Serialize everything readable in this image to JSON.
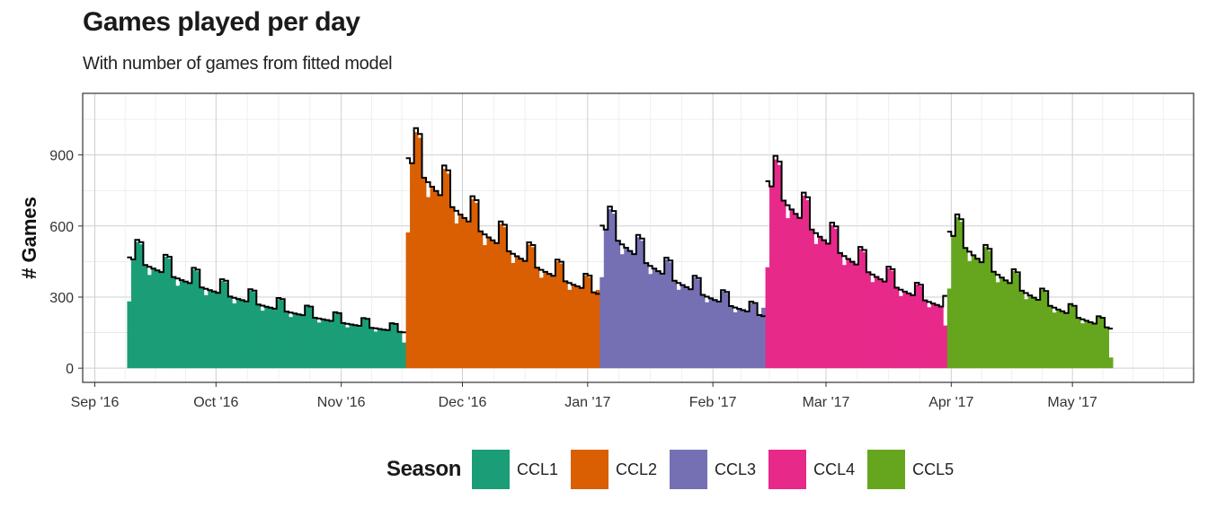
{
  "chart_data": {
    "type": "bar",
    "title": "Games played per day",
    "subtitle": "With number of games from fitted model",
    "xlabel": "",
    "ylabel": "# Games",
    "ylim": [
      -60,
      1160
    ],
    "yticks": [
      0,
      300,
      600,
      900
    ],
    "xlim": [
      "2016-08-29",
      "2017-05-31"
    ],
    "xticks": [
      {
        "date": "2016-09-01",
        "label": "Sep '16"
      },
      {
        "date": "2016-10-01",
        "label": "Oct '16"
      },
      {
        "date": "2016-11-01",
        "label": "Nov '16"
      },
      {
        "date": "2016-12-01",
        "label": "Dec '16"
      },
      {
        "date": "2017-01-01",
        "label": "Jan '17"
      },
      {
        "date": "2017-02-01",
        "label": "Feb '17"
      },
      {
        "date": "2017-03-01",
        "label": "Mar '17"
      },
      {
        "date": "2017-04-01",
        "label": "Apr '17"
      },
      {
        "date": "2017-05-01",
        "label": "May '17"
      }
    ],
    "grid": true,
    "legend": {
      "title": "Season",
      "position": "bottom"
    },
    "colors": {
      "CCL1": "#1b9e77",
      "CCL2": "#d95f02",
      "CCL3": "#7570b3",
      "CCL4": "#e7298a",
      "CCL5": "#66a61e",
      "fit": "#000000"
    },
    "series": [
      {
        "name": "CCL1",
        "start": "2016-09-09",
        "end": "2016-11-17",
        "peak": 580,
        "tail": 108,
        "fit_start": 470
      },
      {
        "name": "CCL2",
        "start": "2016-11-17",
        "end": "2017-01-04",
        "peak": 1050,
        "tail": 330,
        "fit_start": 955
      },
      {
        "name": "CCL3",
        "start": "2017-01-04",
        "end": "2017-02-14",
        "peak": 700,
        "tail": 255,
        "fit_start": 640
      },
      {
        "name": "CCL4",
        "start": "2017-02-14",
        "end": "2017-03-31",
        "peak": 980,
        "tail": 180,
        "fit_start": 710
      },
      {
        "name": "CCL5",
        "start": "2017-03-31",
        "end": "2017-05-11",
        "peak": 750,
        "tail": 45,
        "fit_start": 560
      }
    ]
  }
}
